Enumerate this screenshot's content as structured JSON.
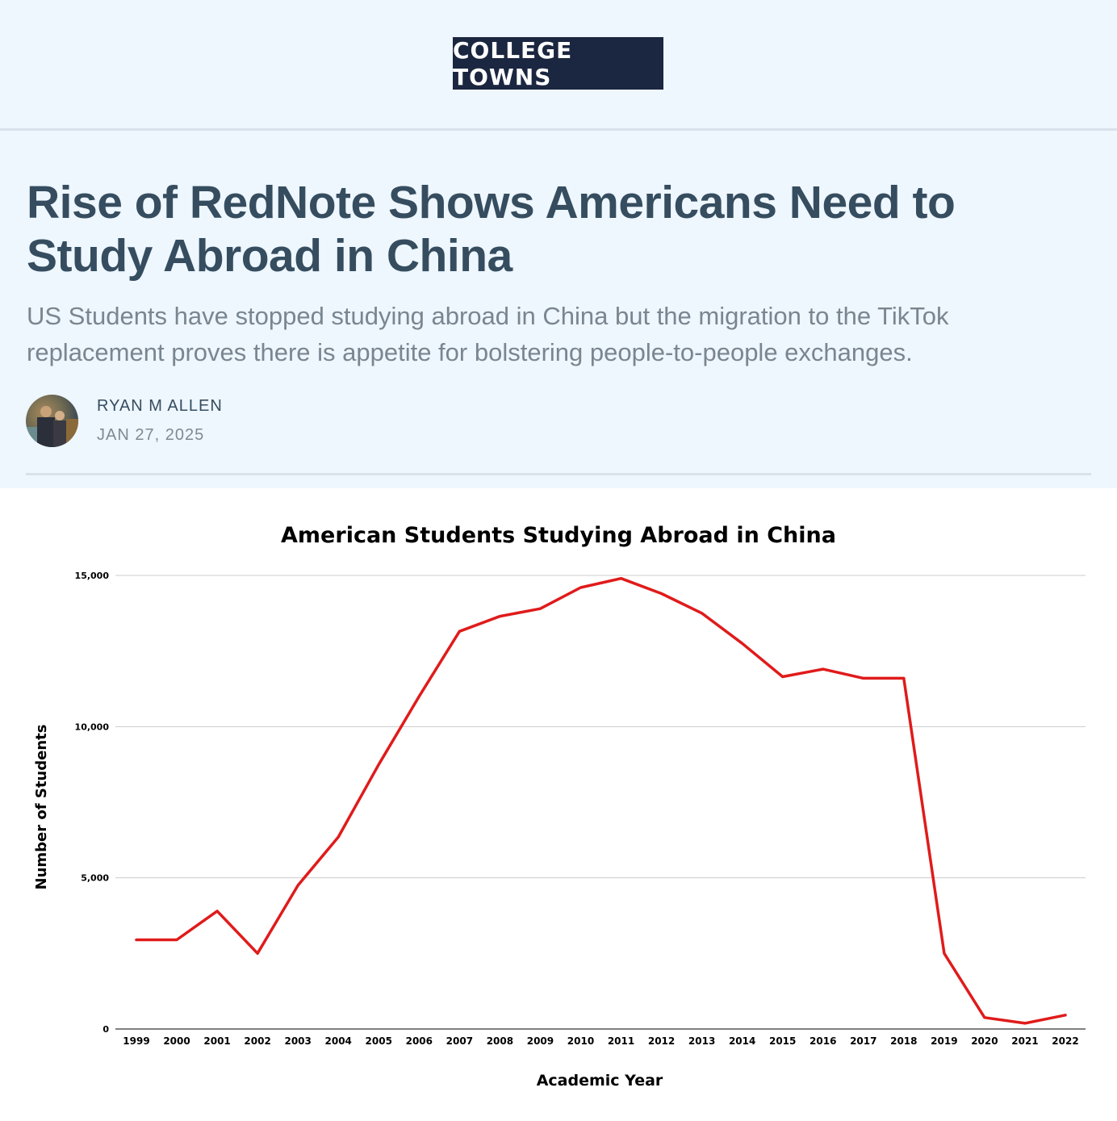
{
  "masthead": {
    "logo_text": "COLLEGE TOWNS"
  },
  "article": {
    "title": "Rise of RedNote Shows Americans Need to Study Abroad in China",
    "subtitle": "US Students have stopped studying abroad in China but the migration to the TikTok replacement proves there is appetite for bolstering people-to-people exchanges.",
    "author": "RYAN M ALLEN",
    "date": "JAN 27, 2025"
  },
  "colors": {
    "header_background": "#eef6fe",
    "logo_background": "#1b2640",
    "headline": "#354d5f",
    "line": "#e01b1b"
  },
  "chart_data": {
    "type": "line",
    "title": "American Students Studying Abroad in China",
    "xlabel": "Academic Year",
    "ylabel": "Number of Students",
    "categories": [
      "1999",
      "2000",
      "2001",
      "2002",
      "2003",
      "2004",
      "2005",
      "2006",
      "2007",
      "2008",
      "2009",
      "2010",
      "2011",
      "2012",
      "2013",
      "2014",
      "2015",
      "2016",
      "2017",
      "2018",
      "2019",
      "2020",
      "2021",
      "2022"
    ],
    "series": [
      {
        "values": [
          2950,
          2950,
          3900,
          2500,
          4750,
          6350,
          8750,
          11000,
          13150,
          13650,
          13900,
          14600,
          14900,
          14400,
          13750,
          12750,
          11650,
          11900,
          11600,
          11600,
          2500,
          380,
          190,
          460
        ],
        "color": "#e01b1b"
      }
    ],
    "ylim": [
      0,
      15000
    ],
    "yticks": [
      0,
      5000,
      10000,
      15000
    ],
    "ytick_labels": [
      "0",
      "5,000",
      "10,000",
      "15,000"
    ],
    "grid": true,
    "legend": "none"
  }
}
